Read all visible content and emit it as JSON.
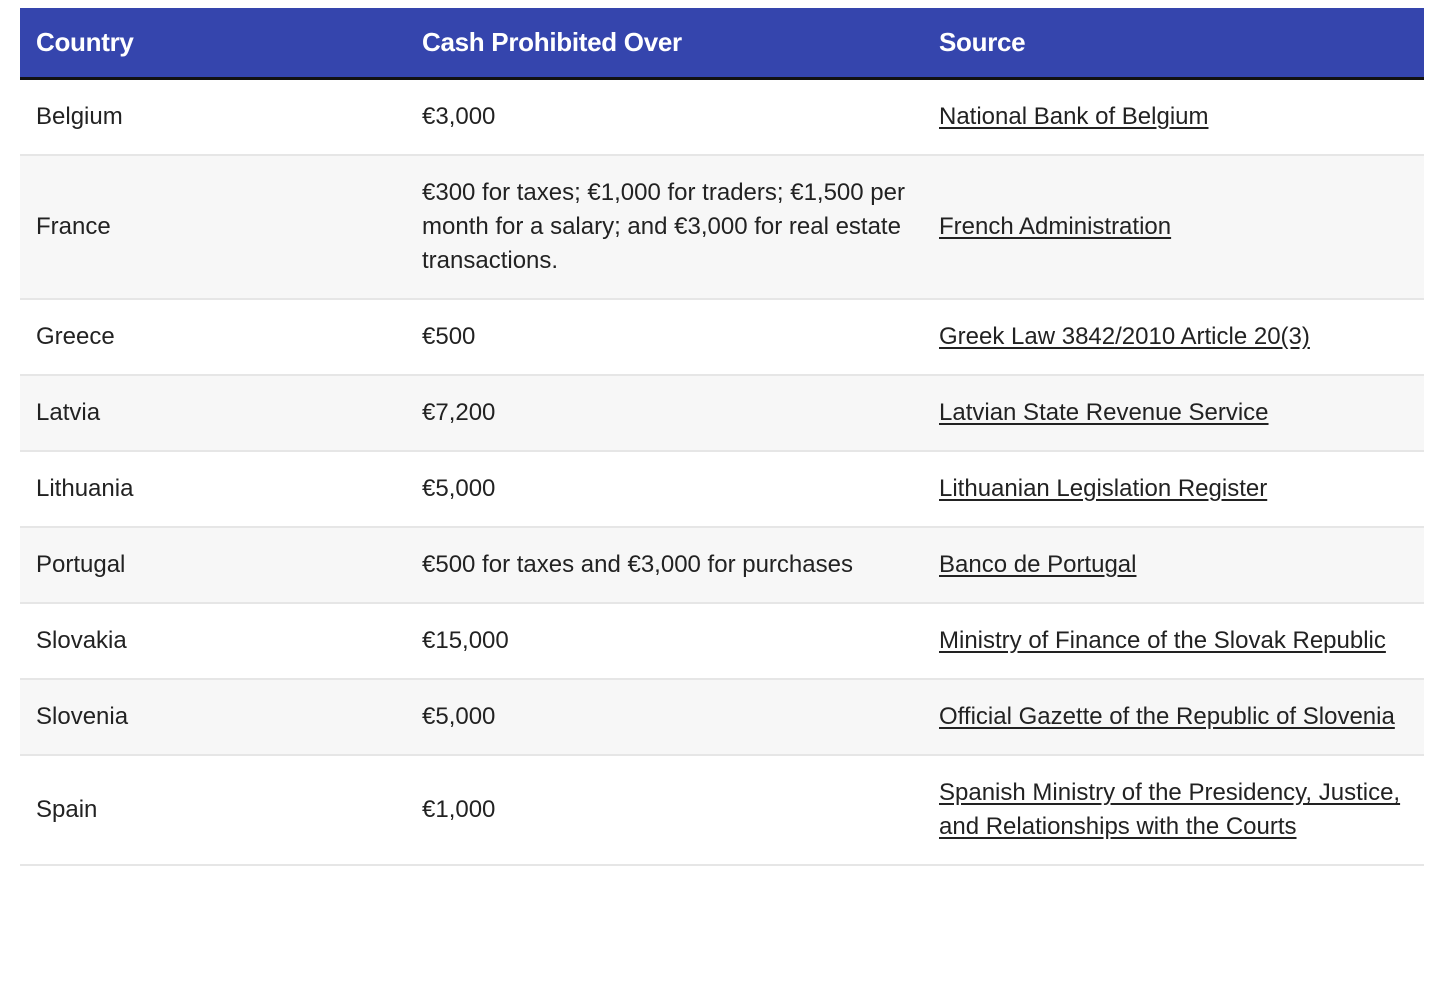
{
  "table": {
    "headers": [
      "Country",
      "Cash Prohibited Over",
      "Source"
    ],
    "header_color": "#3545ad",
    "rows": [
      {
        "country": "Belgium",
        "limit": "€3,000",
        "source": "National Bank of Belgium"
      },
      {
        "country": "France",
        "limit": "€300 for taxes; €1,000 for traders; €1,500 per month for a salary; and €3,000 for real estate transactions.",
        "source": "French Administration"
      },
      {
        "country": "Greece",
        "limit": "€500",
        "source": "Greek Law 3842/2010 Article 20(3)"
      },
      {
        "country": "Latvia",
        "limit": "€7,200",
        "source": "Latvian State Revenue Service"
      },
      {
        "country": "Lithuania",
        "limit": "€5,000",
        "source": "Lithuanian Legislation Register"
      },
      {
        "country": "Portugal",
        "limit": "€500 for taxes and €3,000 for purchases",
        "source": "Banco de Portugal"
      },
      {
        "country": "Slovakia",
        "limit": "€15,000",
        "source": "Ministry of Finance of the Slovak Republic"
      },
      {
        "country": "Slovenia",
        "limit": "€5,000",
        "source": "Official Gazette of the Republic of Slovenia"
      },
      {
        "country": "Spain",
        "limit": "€1,000",
        "source": "Spanish Ministry of the Presidency, Justice, and Relationships with the Courts"
      }
    ]
  }
}
